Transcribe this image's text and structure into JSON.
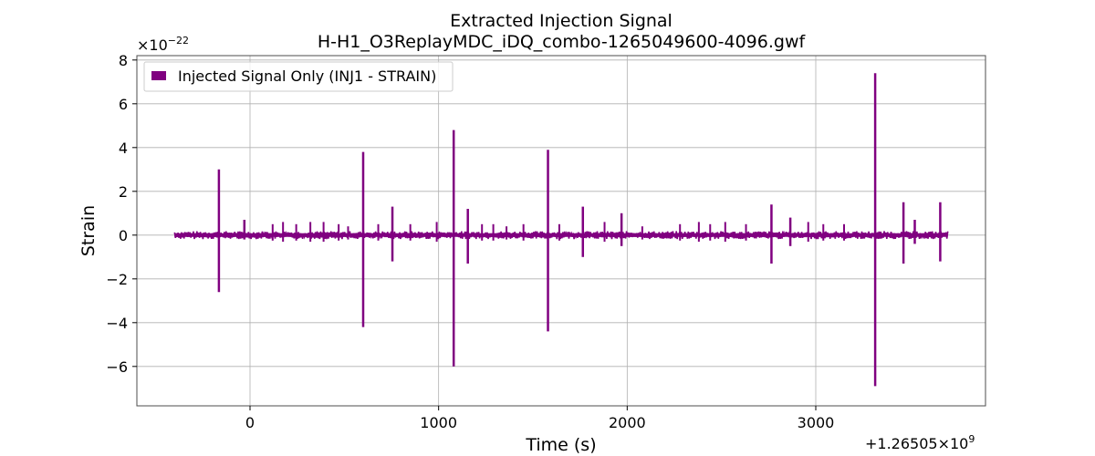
{
  "chart_data": {
    "type": "line",
    "title": "Extracted Injection Signal",
    "subtitle": "H-H1_O3ReplayMDC_iDQ_combo-1265049600-4096.gwf",
    "xlabel": "Time (s)",
    "ylabel": "Strain",
    "x_offset_label": "+1.26505×10",
    "x_offset_exponent": "9",
    "y_scale_label": "×10",
    "y_scale_exponent": "−22",
    "xlim": [
      -600,
      3900
    ],
    "ylim": [
      -7.8,
      8.2
    ],
    "x_ticks": [
      0,
      1000,
      2000,
      3000
    ],
    "x_tick_labels": [
      "0",
      "1000",
      "2000",
      "3000"
    ],
    "y_ticks": [
      -6,
      -4,
      -2,
      0,
      2,
      4,
      6,
      8
    ],
    "y_tick_labels": [
      "−6",
      "−4",
      "−2",
      "0",
      "2",
      "4",
      "6",
      "8"
    ],
    "grid": true,
    "legend_position": "top-left",
    "series": [
      {
        "name": "Injected Signal Only (INJ1 - STRAIN)",
        "color": "#800080",
        "baseline": {
          "x_start": -400,
          "x_end": 3700,
          "amplitude": 0.15
        },
        "spikes": [
          {
            "x": -165,
            "max": 3.0,
            "min": -2.6
          },
          {
            "x": -30,
            "max": 0.7,
            "min": -0.2
          },
          {
            "x": 600,
            "max": 3.8,
            "min": -4.2
          },
          {
            "x": 755,
            "max": 1.3,
            "min": -1.2
          },
          {
            "x": 1080,
            "max": 4.8,
            "min": -6.0
          },
          {
            "x": 1155,
            "max": 1.2,
            "min": -1.3
          },
          {
            "x": 1580,
            "max": 3.9,
            "min": -4.4
          },
          {
            "x": 1765,
            "max": 1.3,
            "min": -1.0
          },
          {
            "x": 1970,
            "max": 1.0,
            "min": -0.5
          },
          {
            "x": 2765,
            "max": 1.4,
            "min": -1.3
          },
          {
            "x": 2865,
            "max": 0.8,
            "min": -0.5
          },
          {
            "x": 3315,
            "max": 7.4,
            "min": -6.9
          },
          {
            "x": 3465,
            "max": 1.5,
            "min": -1.3
          },
          {
            "x": 3525,
            "max": 0.7,
            "min": -0.4
          },
          {
            "x": 3660,
            "max": 1.5,
            "min": -1.2
          }
        ],
        "minor_spikes": [
          {
            "x": 120,
            "max": 0.5
          },
          {
            "x": 175,
            "max": 0.6
          },
          {
            "x": 245,
            "max": 0.5
          },
          {
            "x": 320,
            "max": 0.6
          },
          {
            "x": 390,
            "max": 0.6
          },
          {
            "x": 470,
            "max": 0.5
          },
          {
            "x": 520,
            "max": 0.4
          },
          {
            "x": 680,
            "max": 0.5
          },
          {
            "x": 850,
            "max": 0.5
          },
          {
            "x": 990,
            "max": 0.6
          },
          {
            "x": 1230,
            "max": 0.5
          },
          {
            "x": 1290,
            "max": 0.5
          },
          {
            "x": 1360,
            "max": 0.4
          },
          {
            "x": 1450,
            "max": 0.5
          },
          {
            "x": 1640,
            "max": 0.5
          },
          {
            "x": 1880,
            "max": 0.6
          },
          {
            "x": 2080,
            "max": 0.4
          },
          {
            "x": 2280,
            "max": 0.5
          },
          {
            "x": 2380,
            "max": 0.6
          },
          {
            "x": 2440,
            "max": 0.5
          },
          {
            "x": 2520,
            "max": 0.6
          },
          {
            "x": 2630,
            "max": 0.5
          },
          {
            "x": 2960,
            "max": 0.6
          },
          {
            "x": 3040,
            "max": 0.5
          },
          {
            "x": 3150,
            "max": 0.5
          }
        ]
      }
    ]
  }
}
